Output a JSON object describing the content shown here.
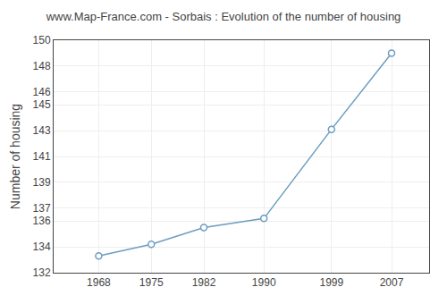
{
  "chart_data": {
    "type": "line",
    "title": "www.Map-France.com - Sorbais : Evolution of the number of housing",
    "ylabel": "Number of housing",
    "x": [
      1968,
      1975,
      1982,
      1990,
      1999,
      2007
    ],
    "values": [
      133.3,
      134.2,
      135.5,
      136.2,
      143.1,
      149.0
    ],
    "xlim": [
      1962,
      2012
    ],
    "xticks": [
      1968,
      1975,
      1982,
      1990,
      1999,
      2007
    ],
    "ylim": [
      132,
      150
    ],
    "yticks": [
      132,
      134,
      136,
      137,
      139,
      141,
      143,
      145,
      146,
      148,
      150
    ],
    "grid": true,
    "color": "#6b9dc2",
    "marker": "circle"
  }
}
